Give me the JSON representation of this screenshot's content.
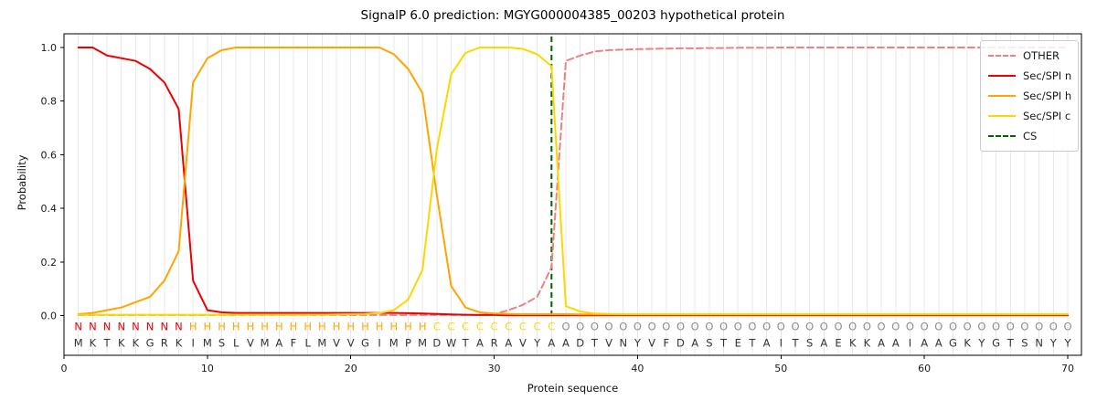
{
  "title": "SignalP 6.0 prediction: MGYG000004385_00203 hypothetical protein",
  "axes": {
    "xlabel": "Protein sequence",
    "ylabel": "Probability",
    "x_ticks": [
      0,
      10,
      20,
      30,
      40,
      50,
      60,
      70
    ],
    "y_ticks": [
      "0.0",
      "0.2",
      "0.4",
      "0.6",
      "0.8",
      "1.0"
    ]
  },
  "legend": {
    "items": [
      {
        "label": "OTHER",
        "color": "#f08080",
        "dash": true
      },
      {
        "label": "Sec/SPI n",
        "color": "#ee0000",
        "dash": false
      },
      {
        "label": "Sec/SPI h",
        "color": "#ffa500",
        "dash": false
      },
      {
        "label": "Sec/SPI c",
        "color": "#ffd700",
        "dash": false
      },
      {
        "label": "CS",
        "color": "#006400",
        "dash": true
      }
    ]
  },
  "colors": {
    "grid": "#e8e8e8",
    "spine": "#000000",
    "cs_line": "#006400",
    "sequence_letters": "#333333",
    "region_N": "#ee0000",
    "region_H": "#ffa500",
    "region_C": "#ffd700",
    "region_O": "#8c8c8c"
  },
  "chart_data": {
    "type": "line",
    "title": "SignalP 6.0 prediction: MGYG000004385_00203 hypothetical protein",
    "xlabel": "Protein sequence",
    "ylabel": "Probability",
    "x_start": 1,
    "xlim": [
      0,
      70.95
    ],
    "ylim": [
      -0.15,
      1.05
    ],
    "grid": true,
    "legend_position": "upper right",
    "cs_position": 34,
    "sequence": "MKTKKGRKIMSLVMAFLMVVGIMPMDWTARAVYAADTVNYVFDASTETAITSAEKKAAIAAGKYGTSNYY",
    "regions": "NNNNNNNNHHHHHHHHHHHHHHHHHCCCCCCCCCOOOOOOOOOOOOOOOOOOOOOOOOOOOOOOOOOOOO",
    "series": [
      {
        "name": "OTHER",
        "color": "#f08080",
        "dash": true,
        "values": [
          0.002,
          0.002,
          0.002,
          0.002,
          0.002,
          0.002,
          0.002,
          0.002,
          0.002,
          0.002,
          0.002,
          0.002,
          0.002,
          0.002,
          0.002,
          0.002,
          0.002,
          0.002,
          0.002,
          0.002,
          0.002,
          0.002,
          0.002,
          0.002,
          0.002,
          0.002,
          0.002,
          0.002,
          0.002,
          0.005,
          0.02,
          0.04,
          0.07,
          0.18,
          0.95,
          0.97,
          0.985,
          0.99,
          0.992,
          0.994,
          0.995,
          0.996,
          0.997,
          0.997,
          0.998,
          0.998,
          0.999,
          0.999,
          0.999,
          1.0,
          1.0,
          1.0,
          1.0,
          1.0,
          1.0,
          1.0,
          1.0,
          1.0,
          1.0,
          1.0,
          1.0,
          1.0,
          1.0,
          1.0,
          1.0,
          1.0,
          1.0,
          1.0,
          1.0,
          1.0
        ]
      },
      {
        "name": "Sec/SPI n",
        "color": "#ee0000",
        "dash": false,
        "values": [
          1.0,
          1.0,
          0.97,
          0.96,
          0.95,
          0.92,
          0.87,
          0.77,
          0.13,
          0.02,
          0.012,
          0.01,
          0.01,
          0.01,
          0.01,
          0.01,
          0.01,
          0.01,
          0.01,
          0.01,
          0.01,
          0.01,
          0.01,
          0.009,
          0.008,
          0.006,
          0.004,
          0.003,
          0.002,
          0.002,
          0.001,
          0.001,
          0.001,
          0.001,
          0.001,
          0.001,
          0.001,
          0.001,
          0.001,
          0.001,
          0.001,
          0.001,
          0.001,
          0.001,
          0.001,
          0.001,
          0.001,
          0.001,
          0.001,
          0.001,
          0.001,
          0.001,
          0.001,
          0.001,
          0.001,
          0.001,
          0.001,
          0.001,
          0.001,
          0.001,
          0.001,
          0.001,
          0.001,
          0.001,
          0.001,
          0.001,
          0.001,
          0.001,
          0.001,
          0.001
        ]
      },
      {
        "name": "Sec/SPI h",
        "color": "#ffa500",
        "dash": false,
        "values": [
          0.005,
          0.01,
          0.02,
          0.03,
          0.05,
          0.07,
          0.13,
          0.24,
          0.87,
          0.96,
          0.99,
          1.0,
          1.0,
          1.0,
          1.0,
          1.0,
          1.0,
          1.0,
          1.0,
          1.0,
          1.0,
          1.0,
          0.975,
          0.92,
          0.83,
          0.45,
          0.11,
          0.03,
          0.012,
          0.008,
          0.006,
          0.005,
          0.005,
          0.005,
          0.005,
          0.004,
          0.004,
          0.004,
          0.004,
          0.004,
          0.004,
          0.004,
          0.004,
          0.004,
          0.004,
          0.004,
          0.004,
          0.004,
          0.004,
          0.004,
          0.004,
          0.004,
          0.004,
          0.004,
          0.004,
          0.004,
          0.004,
          0.004,
          0.004,
          0.004,
          0.004,
          0.004,
          0.004,
          0.004,
          0.004,
          0.004,
          0.004,
          0.004,
          0.004,
          0.004
        ]
      },
      {
        "name": "Sec/SPI c",
        "color": "#ffd700",
        "dash": false,
        "values": [
          0.003,
          0.003,
          0.003,
          0.003,
          0.003,
          0.003,
          0.003,
          0.003,
          0.003,
          0.003,
          0.003,
          0.003,
          0.003,
          0.003,
          0.003,
          0.003,
          0.003,
          0.003,
          0.004,
          0.005,
          0.006,
          0.01,
          0.02,
          0.06,
          0.17,
          0.62,
          0.9,
          0.98,
          1.0,
          1.0,
          1.0,
          0.995,
          0.975,
          0.93,
          0.035,
          0.015,
          0.008,
          0.006,
          0.005,
          0.005,
          0.005,
          0.005,
          0.005,
          0.005,
          0.005,
          0.005,
          0.005,
          0.005,
          0.005,
          0.005,
          0.005,
          0.005,
          0.005,
          0.005,
          0.005,
          0.005,
          0.005,
          0.005,
          0.005,
          0.005,
          0.005,
          0.005,
          0.005,
          0.005,
          0.005,
          0.005,
          0.005,
          0.005,
          0.005,
          0.005
        ]
      }
    ]
  }
}
